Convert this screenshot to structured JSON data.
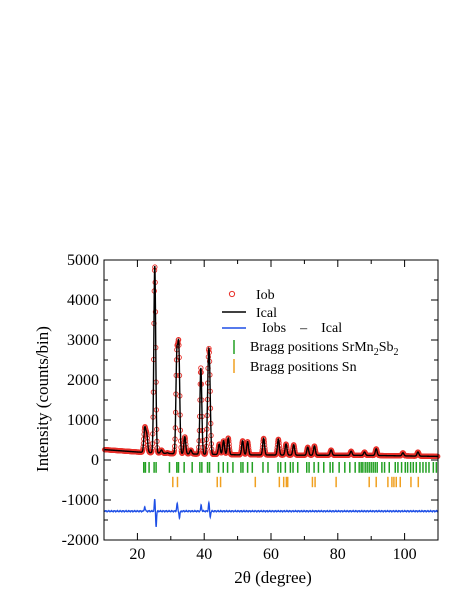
{
  "chart_data": {
    "type": "line",
    "xlabel": "2θ (degree)",
    "ylabel": "Intensity (counts/bin)",
    "xlim": [
      10,
      110
    ],
    "ylim": [
      -2000,
      5000
    ],
    "x_ticks": [
      20,
      40,
      60,
      80,
      100
    ],
    "y_ticks": [
      -2000,
      -1000,
      0,
      1000,
      2000,
      3000,
      4000,
      5000
    ],
    "x_tick_labels": [
      "20",
      "40",
      "60",
      "80",
      "100"
    ],
    "y_tick_labels": [
      "-2000",
      "-1000",
      "0",
      "1000",
      "2000",
      "3000",
      "4000",
      "5000"
    ],
    "legend_position": "top-right",
    "legend": {
      "iobs": "Iob",
      "ical": "Ical",
      "diff_left": "Iobs",
      "diff_dash": "–",
      "diff_right": "Ical",
      "bragg1_prefix": "Bragg positions SrMn",
      "bragg1_sub1": "2",
      "bragg1_mid": "Sb",
      "bragg1_sub2": "2",
      "bragg2": "Bragg positions Sn"
    },
    "colors": {
      "observed": "#e8302a",
      "calculated": "#000000",
      "difference": "#1e4fe6",
      "bragg_srmn2sb2": "#22a022",
      "bragg_sn": "#f0a020"
    },
    "background": {
      "points": [
        [
          10,
          260
        ],
        [
          20,
          200
        ],
        [
          30,
          160
        ],
        [
          50,
          130
        ],
        [
          70,
          120
        ],
        [
          90,
          115
        ],
        [
          110,
          90
        ]
      ]
    },
    "peaks": [
      {
        "x": 22.2,
        "y": 780
      },
      {
        "x": 22.8,
        "y": 620
      },
      {
        "x": 25.2,
        "y": 4850
      },
      {
        "x": 27.2,
        "y": 250
      },
      {
        "x": 29.0,
        "y": 180
      },
      {
        "x": 31.8,
        "y": 2500
      },
      {
        "x": 32.4,
        "y": 2700
      },
      {
        "x": 34.2,
        "y": 580
      },
      {
        "x": 36.0,
        "y": 250
      },
      {
        "x": 39.0,
        "y": 2300
      },
      {
        "x": 41.2,
        "y": 1800
      },
      {
        "x": 41.6,
        "y": 1900
      },
      {
        "x": 44.5,
        "y": 400
      },
      {
        "x": 45.8,
        "y": 480
      },
      {
        "x": 47.2,
        "y": 550
      },
      {
        "x": 51.5,
        "y": 480
      },
      {
        "x": 53.0,
        "y": 460
      },
      {
        "x": 57.8,
        "y": 540
      },
      {
        "x": 62.2,
        "y": 520
      },
      {
        "x": 64.5,
        "y": 400
      },
      {
        "x": 66.8,
        "y": 380
      },
      {
        "x": 71.0,
        "y": 320
      },
      {
        "x": 73.0,
        "y": 350
      },
      {
        "x": 78.0,
        "y": 250
      },
      {
        "x": 84.0,
        "y": 220
      },
      {
        "x": 88.0,
        "y": 200
      },
      {
        "x": 91.5,
        "y": 280
      },
      {
        "x": 99.5,
        "y": 180
      },
      {
        "x": 104.0,
        "y": 200
      }
    ],
    "difference_offset": -1280,
    "difference_features": [
      {
        "x": 22.2,
        "y": 120
      },
      {
        "x": 25.2,
        "y": 300
      },
      {
        "x": 25.6,
        "y": -380
      },
      {
        "x": 31.9,
        "y": 200
      },
      {
        "x": 32.6,
        "y": -160
      },
      {
        "x": 39.1,
        "y": 150
      },
      {
        "x": 41.4,
        "y": 220
      },
      {
        "x": 41.8,
        "y": -140
      }
    ],
    "bragg_srmn2sb2": [
      21.9,
      22.4,
      23.5,
      25.0,
      25.6,
      29.6,
      31.8,
      32.3,
      34.0,
      36.4,
      38.7,
      39.3,
      41.0,
      41.6,
      44.3,
      45.7,
      47.0,
      48.6,
      51.0,
      51.6,
      53.0,
      54.4,
      57.6,
      59.1,
      62.1,
      62.9,
      64.3,
      65.8,
      66.6,
      68.0,
      70.7,
      71.4,
      72.9,
      74.2,
      75.8,
      77.7,
      78.5,
      80.4,
      82.1,
      83.6,
      85.2,
      86.4,
      87.0,
      87.5,
      88.2,
      88.8,
      89.4,
      90.0,
      90.6,
      91.2,
      91.8,
      93.2,
      94.0,
      95.4,
      97.2,
      98.0,
      99.1,
      100.2,
      100.9,
      101.8,
      102.6,
      103.5,
      104.6,
      105.5,
      106.4,
      107.3,
      108.6,
      109.5
    ],
    "bragg_sn": [
      30.6,
      32.0,
      43.9,
      44.9,
      55.3,
      62.5,
      63.8,
      64.6,
      65.0,
      72.4,
      73.2,
      79.5,
      89.4,
      91.5,
      95.0,
      96.2,
      96.8,
      97.5,
      98.7,
      101.9,
      104.1
    ]
  }
}
